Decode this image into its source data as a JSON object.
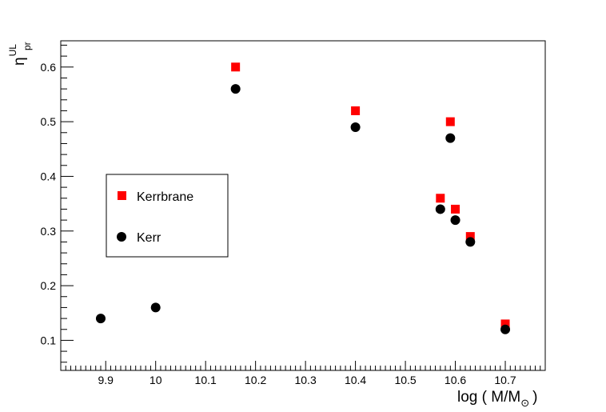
{
  "chart_data": {
    "type": "scatter",
    "title": "",
    "xlabel": {
      "main": "log ( M/M",
      "sub": "⊙",
      "close": ")"
    },
    "ylabel": {
      "main": "η",
      "sup": "UL",
      "sub": "pr"
    },
    "xlim": [
      9.81,
      10.78
    ],
    "ylim": [
      0.045,
      0.648
    ],
    "x_ticks": [
      9.9,
      10,
      10.1,
      10.2,
      10.3,
      10.4,
      10.5,
      10.6,
      10.7
    ],
    "x_tick_labels": [
      "9.9",
      "10",
      "10.1",
      "10.2",
      "10.3",
      "10.4",
      "10.5",
      "10.6",
      "10.7"
    ],
    "y_ticks": [
      0.1,
      0.2,
      0.3,
      0.4,
      0.5,
      0.6
    ],
    "y_tick_labels": [
      "0.1",
      "0.2",
      "0.3",
      "0.4",
      "0.5",
      "0.6"
    ],
    "grid": false,
    "legend": "middle-left",
    "series": [
      {
        "name": "Kerrbrane",
        "marker": "square",
        "color": "#ff0000",
        "points": [
          [
            10.16,
            0.6
          ],
          [
            10.4,
            0.52
          ],
          [
            10.57,
            0.36
          ],
          [
            10.59,
            0.5
          ],
          [
            10.6,
            0.34
          ],
          [
            10.63,
            0.29
          ],
          [
            10.7,
            0.13
          ]
        ]
      },
      {
        "name": "Kerr",
        "marker": "circle",
        "color": "#000000",
        "points": [
          [
            9.89,
            0.14
          ],
          [
            10.0,
            0.16
          ],
          [
            10.16,
            0.56
          ],
          [
            10.4,
            0.49
          ],
          [
            10.57,
            0.34
          ],
          [
            10.59,
            0.47
          ],
          [
            10.6,
            0.32
          ],
          [
            10.63,
            0.28
          ],
          [
            10.7,
            0.12
          ]
        ]
      }
    ]
  }
}
